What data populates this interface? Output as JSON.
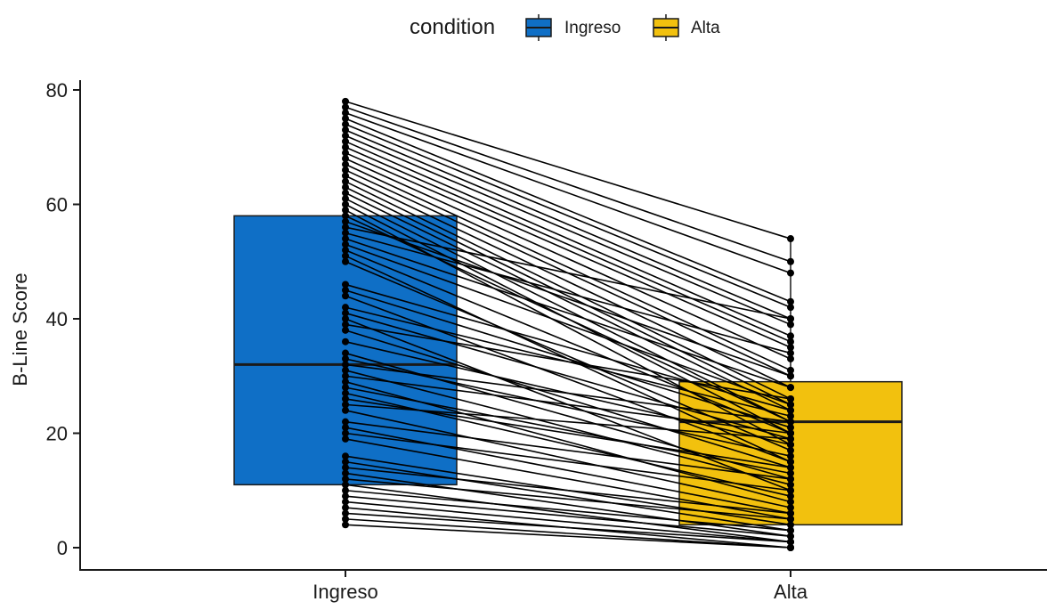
{
  "chart_data": {
    "type": "box",
    "title": "",
    "xlabel": "",
    "ylabel": "B-Line Score",
    "ylim": [
      0,
      80
    ],
    "yticks": [
      "0",
      "20",
      "40",
      "60",
      "80"
    ],
    "categories": [
      "Ingreso",
      "Alta"
    ],
    "legend": {
      "title": "condition",
      "position": "top",
      "entries": [
        "Ingreso",
        "Alta"
      ]
    },
    "colors": {
      "Ingreso": "#0F6FC6",
      "Alta": "#F2C10E",
      "points": "#000000"
    },
    "grid": false,
    "boxes": [
      {
        "name": "Ingreso",
        "q1": 11,
        "median": 32,
        "q3": 58,
        "whisker_low": 4,
        "whisker_high": 78
      },
      {
        "name": "Alta",
        "q1": 4,
        "median": 22,
        "q3": 29,
        "whisker_low": 0,
        "whisker_high": 54
      }
    ],
    "paired": [
      [
        78,
        54
      ],
      [
        77,
        50
      ],
      [
        76,
        48
      ],
      [
        75,
        43
      ],
      [
        74,
        42
      ],
      [
        73,
        40
      ],
      [
        72,
        39
      ],
      [
        71,
        37
      ],
      [
        70,
        36
      ],
      [
        69,
        35
      ],
      [
        68,
        33
      ],
      [
        67,
        31
      ],
      [
        66,
        30
      ],
      [
        65,
        28
      ],
      [
        64,
        26
      ],
      [
        63,
        25
      ],
      [
        62,
        24
      ],
      [
        61,
        22
      ],
      [
        60,
        20
      ],
      [
        59,
        18
      ],
      [
        58,
        22
      ],
      [
        57,
        30
      ],
      [
        56,
        40
      ],
      [
        55,
        34
      ],
      [
        54,
        28
      ],
      [
        53,
        25
      ],
      [
        52,
        20
      ],
      [
        51,
        15
      ],
      [
        50,
        17
      ],
      [
        46,
        24
      ],
      [
        45,
        21
      ],
      [
        44,
        15
      ],
      [
        42,
        23
      ],
      [
        41,
        19
      ],
      [
        40,
        10
      ],
      [
        39,
        26
      ],
      [
        38,
        14
      ],
      [
        36,
        18
      ],
      [
        34,
        12
      ],
      [
        33,
        16
      ],
      [
        32,
        22
      ],
      [
        31,
        11
      ],
      [
        30,
        20
      ],
      [
        29,
        8
      ],
      [
        28,
        13
      ],
      [
        27,
        9
      ],
      [
        26,
        14
      ],
      [
        25,
        19
      ],
      [
        24,
        7
      ],
      [
        22,
        12
      ],
      [
        21,
        6
      ],
      [
        20,
        10
      ],
      [
        19,
        5
      ],
      [
        16,
        4
      ],
      [
        15,
        3
      ],
      [
        14,
        6
      ],
      [
        13,
        2
      ],
      [
        12,
        5
      ],
      [
        11,
        1
      ],
      [
        10,
        3
      ],
      [
        9,
        2
      ],
      [
        8,
        1
      ],
      [
        7,
        0
      ],
      [
        6,
        1
      ],
      [
        5,
        0
      ],
      [
        4,
        0
      ]
    ]
  }
}
